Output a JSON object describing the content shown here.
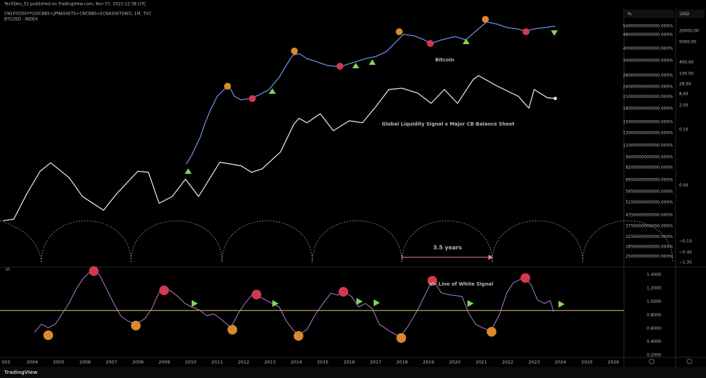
{
  "header": {
    "publisher": "TechDev_52 published on TradingView.com, Nov 07, 2023 22:38 UTC",
    "symbol": "CN10Y/(DXY*(USCBBS+JPNASSETS+CNCBBS+ECBASSETSW)), 1M, TVC",
    "overlay_symbol": "BTCUSD · INDEX"
  },
  "footer": {
    "brand": "TradingView"
  },
  "chart_data": [
    {
      "type": "line",
      "y_unit": "%",
      "y2_unit": "USD",
      "log_scale": true,
      "y2_scale": "symlog",
      "annotations": [
        "3.5 years"
      ],
      "xlim": [
        2002.78,
        2026.4
      ],
      "xticks": [
        {
          "value": 2003,
          "label": "003"
        },
        2004,
        2005,
        2006,
        2007,
        2008,
        2009,
        2010,
        2011,
        2012,
        2013,
        2014,
        2015,
        2016,
        2017,
        2018,
        2019,
        2020,
        2021,
        2022,
        2023,
        2024,
        2025,
        2026
      ],
      "ylim": [
        2220000000000,
        69800000000000
      ],
      "yticks": [
        {
          "value": 54000000000000,
          "label": "54000000000000.000%"
        },
        {
          "value": 48000000000000,
          "label": "48000000000000.000%"
        },
        {
          "value": 40000000000000,
          "label": "40000000000000.000%"
        },
        {
          "value": 34000000000000,
          "label": "34000000000000.000%"
        },
        {
          "value": 28000000000000,
          "label": "28000000000000.000%"
        },
        {
          "value": 24000000000000,
          "label": "24000000000000.000%"
        },
        {
          "value": 21000000000000,
          "label": "21000000000000.000%"
        },
        {
          "value": 18000000000000,
          "label": "18000000000000.000%"
        },
        {
          "value": 15000000000000,
          "label": "15000000000000.000%"
        },
        {
          "value": 13000000000000,
          "label": "13000000000000.000%"
        },
        {
          "value": 11000000000000,
          "label": "11000000000000.000%"
        },
        {
          "value": 9400000000000,
          "label": "9400000000000.000%"
        },
        {
          "value": 8200000000000,
          "label": "8200000000000.000%"
        },
        {
          "value": 6950000000000,
          "label": "6950000000000.000%"
        },
        {
          "value": 5950000000000,
          "label": "5950000000000.000%"
        },
        {
          "value": 5150000000000,
          "label": "5150000000000.000%"
        },
        {
          "value": 4350000000000,
          "label": "4350000000000.000%"
        },
        {
          "value": 3750000000000,
          "label": "3750000000000.000%"
        },
        {
          "value": 3250000000000,
          "label": "3250000000000.000%"
        },
        {
          "value": 2850000000000,
          "label": "2850000000000.000%"
        },
        {
          "value": 2500000000000,
          "label": "2500000000000.000%"
        }
      ],
      "y2lim": [
        -2,
        389000
      ],
      "y2ticks": [
        {
          "value": 20000,
          "label": "20000.00"
        },
        {
          "value": 5000,
          "label": "5000.00"
        },
        {
          "value": 400,
          "label": "400.00"
        },
        {
          "value": 100,
          "label": "100.00"
        },
        {
          "value": 28,
          "label": "28.00"
        },
        {
          "value": 8,
          "label": "8.00"
        },
        {
          "value": 2,
          "label": "2.00"
        },
        {
          "value": 0.1,
          "label": "0.10"
        },
        {
          "value": 0,
          "label": "0.00"
        },
        {
          "value": -0.1,
          "label": "−0.10"
        },
        {
          "value": -0.4,
          "label": "−0.40"
        },
        {
          "value": -1.35,
          "label": "−1.35"
        }
      ],
      "series": [
        {
          "name": "Global Liquidity Signal x Major CB Balance Sheet",
          "color": "#e4e4e4",
          "x": [
            2002.9,
            2003.3,
            2003.8,
            2004.3,
            2004.7,
            2005.4,
            2005.9,
            2006.7,
            2007.2,
            2008.0,
            2008.4,
            2008.8,
            2009.3,
            2009.8,
            2010.3,
            2011.1,
            2011.9,
            2012.3,
            2012.7,
            2013.4,
            2013.9,
            2014.1,
            2014.4,
            2014.9,
            2015.4,
            2016.0,
            2016.5,
            2017.0,
            2017.5,
            2018.0,
            2018.6,
            2019.1,
            2019.6,
            2020.1,
            2020.7,
            2020.9,
            2021.6,
            2022.4,
            2022.8,
            2023.0,
            2023.5,
            2023.8
          ],
          "values": [
            4040000000000,
            4120000000000,
            5800000000000,
            7800000000000,
            8740000000000,
            7150000000000,
            5580000000000,
            4640000000000,
            5800000000000,
            7800000000000,
            7700000000000,
            5090000000000,
            5580000000000,
            7020000000000,
            5580000000000,
            8800000000000,
            8400000000000,
            7700000000000,
            8050000000000,
            10100000000000,
            14600000000000,
            15800000000000,
            14900000000000,
            16800000000000,
            13400000000000,
            15300000000000,
            14900000000000,
            18400000000000,
            23200000000000,
            23600000000000,
            22100000000000,
            19300000000000,
            23200000000000,
            19300000000000,
            26600000000000,
            27900000000000,
            24300000000000,
            21200000000000,
            18100000000000,
            23200000000000,
            20800000000000,
            20600000000000
          ]
        },
        {
          "name": "Bitcoin",
          "color": "#6f8fe0",
          "axis": "y2",
          "x": [
            2009.83,
            2010.04,
            2010.22,
            2010.35,
            2010.53,
            2010.74,
            2011.0,
            2011.26,
            2011.45,
            2011.66,
            2011.92,
            2012.31,
            2012.57,
            2012.96,
            2013.35,
            2013.61,
            2013.87,
            2014.13,
            2014.39,
            2014.79,
            2015.18,
            2015.65,
            2015.96,
            2016.22,
            2016.62,
            2017.01,
            2017.4,
            2017.79,
            2018.05,
            2018.45,
            2018.84,
            2019.1,
            2019.49,
            2020.01,
            2020.41,
            2020.8,
            2021.2,
            2021.59,
            2021.98,
            2022.36,
            2022.67,
            2023.01,
            2023.41,
            2023.8
          ],
          "values": [
            0.0013,
            0.0042,
            0.0152,
            0.0359,
            0.198,
            1.09,
            6.0,
            14.1,
            21.5,
            6.0,
            3.9,
            5.06,
            7.1,
            14.1,
            65,
            278,
            1000,
            1186,
            653,
            427,
            278,
            235,
            330,
            427,
            653,
            843,
            1530,
            5500,
            12900,
            10900,
            6530,
            4270,
            6530,
            10000,
            6530,
            19800,
            60000,
            46400,
            30200,
            25500,
            19800,
            25500,
            30200,
            35900
          ]
        }
      ]
    },
    {
      "type": "line",
      "pane_label": "VI",
      "ylim": [
        0.15,
        1.51
      ],
      "yticks": [
        {
          "value": 1.4,
          "label": "1.4000"
        },
        {
          "value": 1.2,
          "label": "1.2000"
        },
        {
          "value": 1.0,
          "label": "1.0000"
        },
        {
          "value": 0.8,
          "label": "0.8000"
        },
        {
          "value": 0.6,
          "label": "0.6000"
        },
        {
          "value": 0.4,
          "label": "0.4000"
        },
        {
          "value": 0.2,
          "label": "0.2000"
        }
      ],
      "hline": 0.87,
      "hline_color": "#e3d774",
      "series": [
        {
          "name": "VI- Line of White Signal",
          "color": "#b77fd8",
          "x": [
            2004.08,
            2004.34,
            2004.61,
            2004.87,
            2005.13,
            2005.39,
            2005.65,
            2005.91,
            2006.17,
            2006.33,
            2006.56,
            2006.83,
            2007.09,
            2007.35,
            2007.61,
            2007.92,
            2008.26,
            2008.52,
            2008.79,
            2009.0,
            2009.25,
            2009.51,
            2009.78,
            2010.04,
            2010.35,
            2010.61,
            2010.87,
            2011.13,
            2011.52,
            2011.79,
            2012.05,
            2012.31,
            2012.52,
            2012.83,
            2013.09,
            2013.35,
            2013.61,
            2013.87,
            2014.08,
            2014.39,
            2014.73,
            2015.05,
            2015.31,
            2015.57,
            2015.78,
            2016.09,
            2016.36,
            2016.62,
            2016.88,
            2017.14,
            2017.53,
            2017.92,
            2018.19,
            2018.58,
            2018.97,
            2019.15,
            2019.49,
            2019.88,
            2020.27,
            2020.53,
            2020.79,
            2021.05,
            2021.36,
            2021.7,
            2021.96,
            2022.22,
            2022.61,
            2022.87,
            2023.13,
            2023.39,
            2023.61,
            2023.74
          ],
          "values": [
            0.54,
            0.664,
            0.612,
            0.664,
            0.82,
            0.975,
            1.182,
            1.338,
            1.441,
            1.473,
            1.39,
            1.182,
            0.975,
            0.789,
            0.716,
            0.664,
            0.747,
            0.892,
            1.131,
            1.203,
            1.162,
            1.079,
            0.975,
            0.923,
            0.871,
            0.789,
            0.82,
            0.747,
            0.612,
            0.82,
            0.975,
            1.099,
            1.099,
            1.027,
            0.975,
            0.923,
            0.716,
            0.581,
            0.509,
            0.581,
            0.82,
            0.996,
            1.131,
            1.099,
            1.151,
            1.079,
            0.923,
            0.975,
            0.892,
            0.664,
            0.561,
            0.478,
            0.612,
            0.871,
            1.182,
            1.338,
            1.131,
            1.099,
            1.079,
            0.82,
            0.664,
            0.612,
            0.561,
            0.82,
            1.131,
            1.286,
            1.359,
            1.265,
            1.027,
            0.975,
            1.017,
            0.851
          ]
        }
      ]
    }
  ]
}
